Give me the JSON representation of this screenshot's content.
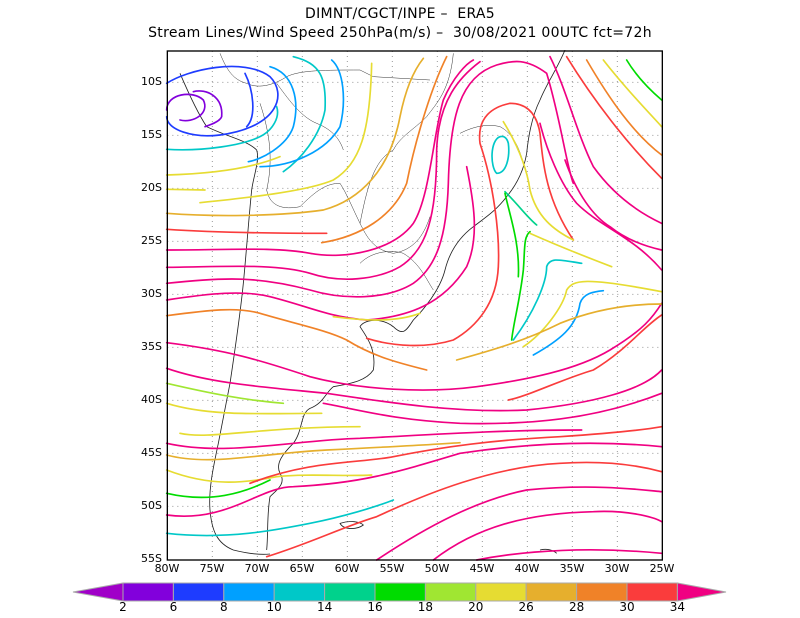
{
  "header": {
    "line1": "DIMNT/CGCT/INPE –  ERA5",
    "line2": "Stream Lines/Wind Speed 250hPa(m/s) –  30/08/2021 00UTC fct=72h"
  },
  "map": {
    "lat_labels": [
      "10S",
      "15S",
      "20S",
      "25S",
      "30S",
      "35S",
      "40S",
      "45S",
      "50S",
      "55S"
    ],
    "lon_labels": [
      "80W",
      "75W",
      "70W",
      "65W",
      "60W",
      "55W",
      "50W",
      "45W",
      "40W",
      "35W",
      "30W",
      "25W"
    ]
  },
  "colorbar": {
    "labels": [
      "2",
      "6",
      "8",
      "10",
      "14",
      "16",
      "18",
      "20",
      "26",
      "28",
      "30",
      "34"
    ],
    "under_color": "#a000c8",
    "over_color": "#f00082",
    "colors": [
      "#8200dc",
      "#1e3cff",
      "#00a0ff",
      "#00c8c8",
      "#00d28c",
      "#00dc00",
      "#a0e632",
      "#e6dc32",
      "#e6af2d",
      "#f08228",
      "#fa3c3c"
    ]
  }
}
